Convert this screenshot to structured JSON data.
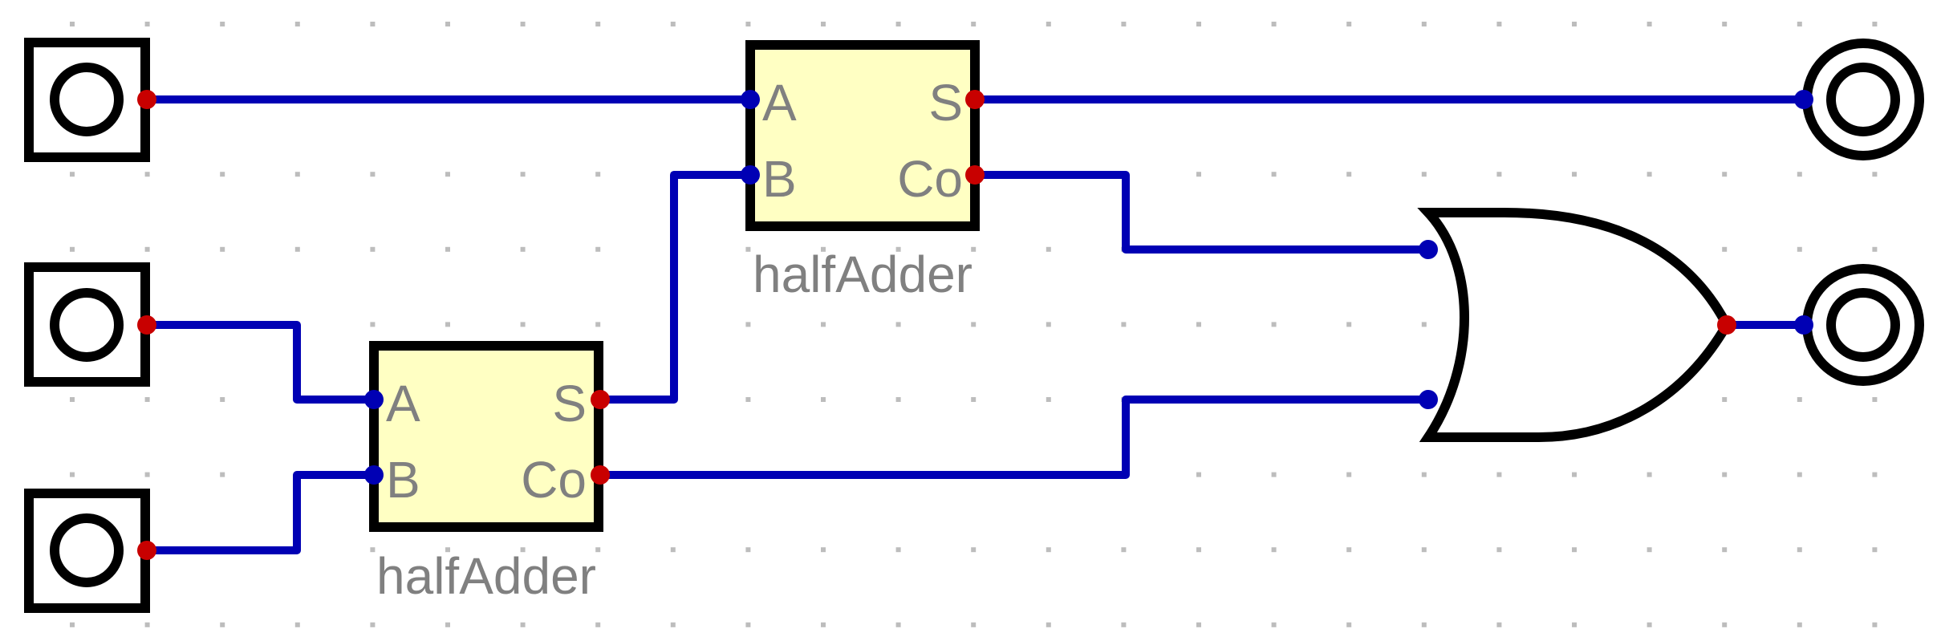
{
  "colors": {
    "wire": "#0000b4",
    "output_pin": "#c80000",
    "input_pin": "#0000b4",
    "half_adder_fill": "#ffffc3",
    "label_text": "#808080"
  },
  "components": {
    "half_adder_top": {
      "name": "halfAdder",
      "port_a": "A",
      "port_b": "B",
      "port_s": "S",
      "port_co": "Co"
    },
    "half_adder_bottom": {
      "name": "halfAdder",
      "port_a": "A",
      "port_b": "B",
      "port_s": "S",
      "port_co": "Co"
    },
    "or_gate": {
      "type": "OR"
    }
  },
  "inputs": [
    "input-1",
    "input-2",
    "input-3"
  ],
  "outputs": [
    "output-sum",
    "output-carry"
  ]
}
